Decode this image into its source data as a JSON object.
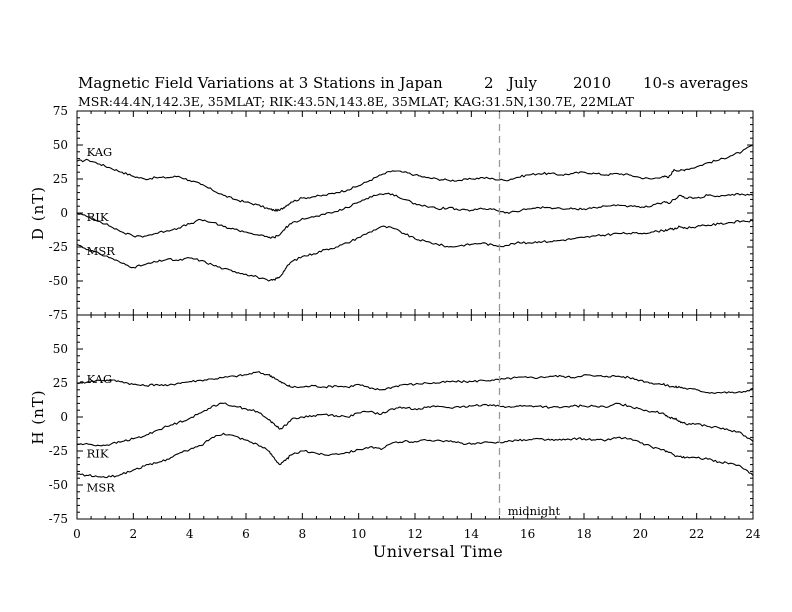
{
  "header": {
    "title": "Magnetic Field Variations at 3 Stations in Japan",
    "day": "2",
    "month": "July",
    "year": "2010",
    "averaging": "10-s averages",
    "stations_line": "MSR:44.4N,142.3E, 35MLAT;   RIK:43.5N,143.8E, 35MLAT;   KAG:31.5N,130.7E, 22MLAT"
  },
  "chart_data": [
    {
      "type": "line",
      "panel": "D",
      "ylabel": "D (nT)",
      "ylim": [
        -75,
        75
      ],
      "yticks": [
        "75",
        "50",
        "25",
        "0",
        "-25",
        "-50",
        "-75"
      ],
      "xlim": [
        0,
        24
      ],
      "series": [
        {
          "name": "KAG",
          "x": [
            0,
            0.4,
            0.8,
            1.2,
            1.6,
            2.0,
            2.4,
            2.8,
            3.2,
            3.6,
            4.0,
            4.4,
            4.8,
            5.2,
            5.6,
            6.0,
            6.4,
            6.8,
            7.0,
            7.2,
            7.4,
            7.6,
            8.0,
            8.4,
            8.8,
            9.2,
            9.6,
            10.0,
            10.4,
            10.8,
            11.2,
            11.6,
            12.0,
            12.4,
            12.8,
            13.2,
            13.6,
            14.0,
            14.4,
            14.8,
            15.2,
            15.6,
            16.0,
            16.4,
            16.8,
            17.2,
            17.6,
            18.0,
            18.4,
            18.8,
            19.2,
            19.6,
            20.0,
            20.4,
            20.8,
            21.0,
            21.2,
            21.4,
            21.6,
            22.0,
            22.4,
            22.8,
            23.2,
            23.6,
            24.0
          ],
          "values": [
            38,
            39,
            36,
            33,
            30,
            27,
            25,
            26,
            26,
            27,
            24,
            21,
            17,
            13,
            10,
            8,
            6,
            3,
            2,
            2,
            5,
            8,
            11,
            12,
            13,
            15,
            17,
            20,
            24,
            28,
            31,
            30,
            28,
            26,
            25,
            24,
            24,
            25,
            26,
            25,
            24,
            26,
            28,
            29,
            29,
            28,
            29,
            30,
            29,
            28,
            29,
            28,
            26,
            25,
            27,
            26,
            32,
            31,
            32,
            34,
            37,
            39,
            42,
            45,
            50
          ]
        },
        {
          "name": "RIK",
          "x": [
            0,
            0.4,
            0.8,
            1.2,
            1.6,
            2.0,
            2.4,
            2.8,
            3.2,
            3.6,
            4.0,
            4.4,
            4.8,
            5.2,
            5.6,
            6.0,
            6.4,
            6.8,
            7.0,
            7.2,
            7.4,
            7.6,
            8.0,
            8.4,
            8.8,
            9.2,
            9.6,
            10.0,
            10.4,
            10.8,
            11.2,
            11.6,
            12.0,
            12.4,
            12.8,
            13.2,
            13.6,
            14.0,
            14.4,
            14.8,
            15.2,
            15.6,
            16.0,
            16.4,
            16.8,
            17.2,
            17.6,
            18.0,
            18.4,
            18.8,
            19.2,
            19.6,
            20.0,
            20.4,
            20.8,
            21.0,
            21.2,
            21.4,
            21.6,
            22.0,
            22.4,
            22.8,
            23.2,
            23.6,
            24.0
          ],
          "values": [
            0,
            -3,
            -6,
            -10,
            -14,
            -17,
            -17,
            -15,
            -13,
            -11,
            -8,
            -5,
            -7,
            -10,
            -12,
            -14,
            -16,
            -18,
            -18,
            -16,
            -11,
            -8,
            -4,
            -3,
            -1,
            1,
            4,
            8,
            12,
            14,
            14,
            10,
            7,
            5,
            3,
            4,
            2,
            2,
            3,
            3,
            0,
            1,
            3,
            4,
            4,
            3,
            3,
            3,
            4,
            5,
            6,
            5,
            4,
            5,
            8,
            7,
            10,
            13,
            11,
            11,
            13,
            12,
            13,
            14,
            13
          ]
        },
        {
          "name": "MSR",
          "x": [
            0,
            0.4,
            0.8,
            1.2,
            1.6,
            2.0,
            2.4,
            2.8,
            3.2,
            3.6,
            4.0,
            4.4,
            4.8,
            5.2,
            5.6,
            6.0,
            6.4,
            6.8,
            7.0,
            7.2,
            7.4,
            7.6,
            8.0,
            8.4,
            8.8,
            9.2,
            9.6,
            10.0,
            10.4,
            10.8,
            11.2,
            11.6,
            12.0,
            12.4,
            12.8,
            13.2,
            13.6,
            14.0,
            14.4,
            14.8,
            15.2,
            15.6,
            16.0,
            16.4,
            16.8,
            17.2,
            17.6,
            18.0,
            18.4,
            18.8,
            19.2,
            19.6,
            20.0,
            20.4,
            20.8,
            21.0,
            21.2,
            21.4,
            21.6,
            22.0,
            22.4,
            22.8,
            23.2,
            23.6,
            24.0
          ],
          "values": [
            -23,
            -27,
            -30,
            -33,
            -37,
            -40,
            -38,
            -36,
            -34,
            -35,
            -33,
            -35,
            -38,
            -41,
            -43,
            -45,
            -47,
            -50,
            -49,
            -47,
            -41,
            -36,
            -32,
            -30,
            -27,
            -25,
            -22,
            -18,
            -14,
            -10,
            -11,
            -15,
            -19,
            -21,
            -23,
            -25,
            -24,
            -23,
            -22,
            -24,
            -24,
            -22,
            -22,
            -21,
            -21,
            -20,
            -19,
            -18,
            -17,
            -16,
            -15,
            -15,
            -15,
            -14,
            -13,
            -12,
            -12,
            -10,
            -11,
            -10,
            -9,
            -8,
            -7,
            -6,
            -6
          ]
        }
      ],
      "annotations": [
        {
          "text": "KAG",
          "x": 0.2,
          "y": 45
        },
        {
          "text": "RIK",
          "x": 0.2,
          "y": -3
        },
        {
          "text": "MSR",
          "x": 0.2,
          "y": -28
        }
      ]
    },
    {
      "type": "line",
      "panel": "H",
      "ylabel": "H (nT)",
      "ylim": [
        -75,
        75
      ],
      "yticks": [
        "",
        "50",
        "25",
        "0",
        "-25",
        "-50",
        "-75"
      ],
      "xlim": [
        0,
        24
      ],
      "xticks": [
        "0",
        "2",
        "4",
        "6",
        "8",
        "10",
        "12",
        "14",
        "16",
        "18",
        "20",
        "22",
        "24"
      ],
      "xlabel": "Universal Time",
      "series": [
        {
          "name": "KAG",
          "x": [
            0,
            0.4,
            0.8,
            1.2,
            1.6,
            2.0,
            2.4,
            2.8,
            3.2,
            3.6,
            4.0,
            4.4,
            4.8,
            5.2,
            5.6,
            6.0,
            6.4,
            6.8,
            7.0,
            7.2,
            7.4,
            7.6,
            8.0,
            8.4,
            8.8,
            9.2,
            9.6,
            10.0,
            10.4,
            10.8,
            11.2,
            11.6,
            12.0,
            12.4,
            12.8,
            13.2,
            13.6,
            14.0,
            14.4,
            14.8,
            15.2,
            15.6,
            16.0,
            16.4,
            16.8,
            17.2,
            17.6,
            18.0,
            18.4,
            18.8,
            19.2,
            19.6,
            20.0,
            20.4,
            20.8,
            21.0,
            21.2,
            21.4,
            21.6,
            22.0,
            22.4,
            22.8,
            23.2,
            23.6,
            24.0
          ],
          "values": [
            25,
            26,
            27,
            27,
            26,
            24,
            23,
            24,
            23,
            25,
            26,
            27,
            28,
            29,
            30,
            31,
            33,
            31,
            29,
            26,
            24,
            22,
            22,
            23,
            22,
            23,
            22,
            24,
            21,
            20,
            22,
            24,
            24,
            25,
            25,
            26,
            26,
            26,
            27,
            27,
            28,
            29,
            29,
            29,
            30,
            30,
            29,
            31,
            30,
            30,
            30,
            29,
            27,
            25,
            24,
            23,
            22,
            22,
            21,
            20,
            18,
            18,
            18,
            18,
            21
          ]
        },
        {
          "name": "RIK",
          "x": [
            0,
            0.4,
            0.8,
            1.2,
            1.6,
            2.0,
            2.4,
            2.8,
            3.2,
            3.6,
            4.0,
            4.4,
            4.8,
            5.2,
            5.6,
            6.0,
            6.4,
            6.8,
            7.0,
            7.2,
            7.4,
            7.6,
            8.0,
            8.4,
            8.8,
            9.2,
            9.6,
            10.0,
            10.4,
            10.8,
            11.2,
            11.6,
            12.0,
            12.4,
            12.8,
            13.2,
            13.6,
            14.0,
            14.4,
            14.8,
            15.2,
            15.6,
            16.0,
            16.4,
            16.8,
            17.2,
            17.6,
            18.0,
            18.4,
            18.8,
            19.2,
            19.6,
            20.0,
            20.4,
            20.8,
            21.0,
            21.2,
            21.4,
            21.6,
            22.0,
            22.4,
            22.8,
            23.2,
            23.6,
            24.0
          ],
          "values": [
            -20,
            -20,
            -21,
            -20,
            -18,
            -16,
            -14,
            -10,
            -7,
            -4,
            -1,
            3,
            8,
            10,
            8,
            6,
            4,
            -2,
            -5,
            -9,
            -6,
            -2,
            0,
            1,
            2,
            1,
            0,
            3,
            4,
            2,
            6,
            7,
            6,
            7,
            8,
            7,
            7,
            8,
            9,
            9,
            7,
            8,
            8,
            8,
            7,
            7,
            8,
            8,
            8,
            7,
            10,
            8,
            6,
            4,
            3,
            0,
            -1,
            -3,
            -5,
            -5,
            -7,
            -8,
            -10,
            -12,
            -18
          ]
        },
        {
          "name": "MSR",
          "x": [
            0,
            0.4,
            0.8,
            1.2,
            1.6,
            2.0,
            2.4,
            2.8,
            3.2,
            3.6,
            4.0,
            4.4,
            4.8,
            5.2,
            5.6,
            6.0,
            6.4,
            6.8,
            7.0,
            7.2,
            7.4,
            7.6,
            8.0,
            8.4,
            8.8,
            9.2,
            9.6,
            10.0,
            10.4,
            10.8,
            11.2,
            11.6,
            12.0,
            12.4,
            12.8,
            13.2,
            13.6,
            14.0,
            14.4,
            14.8,
            15.2,
            15.6,
            16.0,
            16.4,
            16.8,
            17.2,
            17.6,
            18.0,
            18.4,
            18.8,
            19.2,
            19.6,
            20.0,
            20.4,
            20.8,
            21.0,
            21.2,
            21.4,
            21.6,
            22.0,
            22.4,
            22.8,
            23.2,
            23.6,
            24.0
          ],
          "values": [
            -42,
            -43,
            -44,
            -44,
            -42,
            -39,
            -36,
            -34,
            -31,
            -27,
            -24,
            -21,
            -15,
            -12,
            -14,
            -17,
            -20,
            -25,
            -30,
            -35,
            -32,
            -28,
            -25,
            -26,
            -28,
            -27,
            -26,
            -24,
            -22,
            -24,
            -19,
            -18,
            -18,
            -17,
            -17,
            -18,
            -19,
            -20,
            -19,
            -19,
            -18,
            -17,
            -17,
            -16,
            -17,
            -17,
            -16,
            -16,
            -17,
            -17,
            -15,
            -16,
            -19,
            -22,
            -24,
            -26,
            -28,
            -29,
            -30,
            -30,
            -31,
            -33,
            -34,
            -37,
            -43
          ]
        }
      ],
      "annotations": [
        {
          "text": "KAG",
          "x": 0.2,
          "y": 28
        },
        {
          "text": "RIK",
          "x": 0.2,
          "y": -27
        },
        {
          "text": "MSR",
          "x": 0.2,
          "y": -52
        },
        {
          "text": "midnight",
          "x": 15.15,
          "y": -69
        }
      ],
      "vline": {
        "x": 15,
        "style": "dashed",
        "color": "#999999"
      }
    }
  ]
}
